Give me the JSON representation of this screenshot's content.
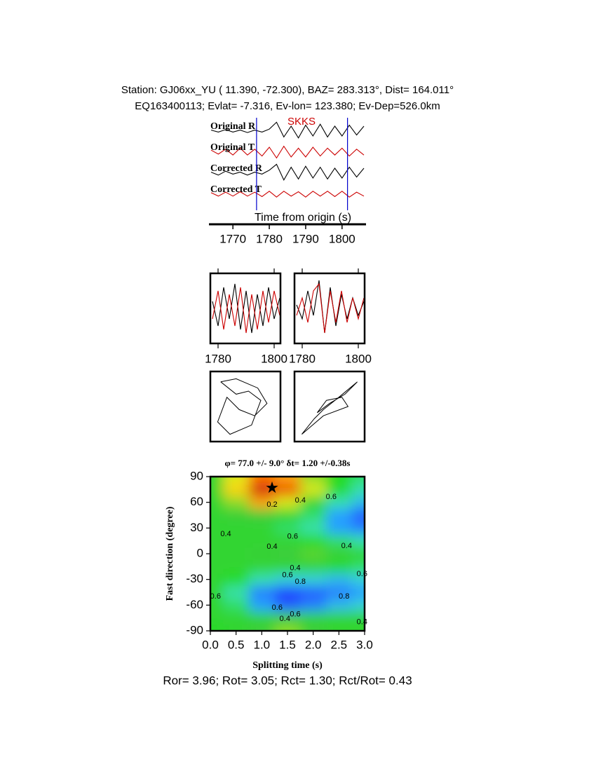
{
  "header": {
    "station": "Station: GJ06xx_YU (  11.390,  -72.300), BAZ=  283.313°, Dist=  164.011°",
    "event": "EQ163400113; Evlat=  -7.316, Ev-lon= 123.380; Ev-Dep=526.0km"
  },
  "chart_data": [
    {
      "type": "line",
      "annotation": "SKKS",
      "xlabel": "Time from origin (s)",
      "xlim": [
        1763.8,
        1806.2
      ],
      "xticks": [
        1770,
        1780,
        1790,
        1800
      ],
      "markers": [
        1776.5,
        1801.5
      ],
      "marker_color": "#0000cc",
      "x": [
        1764,
        1766,
        1768,
        1770,
        1772,
        1774,
        1776,
        1778,
        1780,
        1782,
        1784,
        1786,
        1788,
        1790,
        1792,
        1794,
        1796,
        1798,
        1800,
        1802,
        1804,
        1806
      ],
      "series": [
        {
          "name": "Original R",
          "color": "#000000",
          "values": [
            0.1,
            -0.1,
            0.15,
            -0.1,
            0.1,
            -0.15,
            0.1,
            -0.1,
            0.2,
            0.9,
            -0.6,
            0.5,
            -0.7,
            0.6,
            -0.5,
            0.7,
            -0.6,
            0.5,
            -0.5,
            0.6,
            -0.4,
            0.5
          ]
        },
        {
          "name": "Original T",
          "color": "#cc0000",
          "values": [
            0.2,
            -0.2,
            0.3,
            -0.3,
            0.4,
            -0.3,
            0.3,
            -0.4,
            0.5,
            -0.6,
            0.6,
            -0.5,
            0.4,
            -0.5,
            0.5,
            -0.4,
            0.4,
            -0.3,
            0.4,
            -0.4,
            0.3,
            -0.3
          ]
        },
        {
          "name": "Corrected R",
          "color": "#000000",
          "values": [
            0.1,
            -0.2,
            0.2,
            -0.1,
            0.1,
            -0.2,
            0.1,
            -0.1,
            0.3,
            0.9,
            -0.7,
            0.6,
            -0.6,
            0.7,
            -0.5,
            0.6,
            -0.6,
            0.5,
            -0.5,
            0.6,
            -0.4,
            0.5
          ]
        },
        {
          "name": "Corrected T",
          "color": "#cc0000",
          "values": [
            0.15,
            -0.2,
            0.2,
            -0.2,
            0.25,
            -0.2,
            0.2,
            -0.25,
            0.3,
            -0.3,
            0.3,
            -0.2,
            0.25,
            -0.3,
            0.3,
            -0.2,
            0.3,
            -0.25,
            0.3,
            -0.3,
            0.2,
            -0.2
          ]
        }
      ]
    },
    {
      "type": "line",
      "xlim": [
        1777.25,
        1802.25
      ],
      "xticks": [
        1780,
        1800
      ],
      "x": [
        1778,
        1780,
        1782,
        1784,
        1786,
        1788,
        1790,
        1792,
        1794,
        1796,
        1798,
        1800,
        1802
      ],
      "series": [
        {
          "color": "#000000",
          "values": [
            0.2,
            -0.5,
            0.6,
            -0.3,
            0.7,
            -0.6,
            0.5,
            -0.7,
            0.4,
            -0.5,
            0.6,
            -0.3,
            0.3
          ]
        },
        {
          "color": "#cc0000",
          "values": [
            -0.3,
            0.5,
            -0.6,
            0.4,
            -0.5,
            0.6,
            -0.7,
            0.4,
            -0.6,
            0.5,
            -0.4,
            0.5,
            -0.2
          ]
        }
      ]
    },
    {
      "type": "line",
      "xlim": [
        1777.25,
        1802.25
      ],
      "xticks": [
        1780,
        1800
      ],
      "x": [
        1778,
        1780,
        1782,
        1784,
        1786,
        1788,
        1790,
        1792,
        1794,
        1796,
        1798,
        1800,
        1802
      ],
      "series": [
        {
          "color": "#000000",
          "values": [
            0.1,
            -0.3,
            0.5,
            -0.2,
            0.8,
            -0.7,
            0.6,
            -0.5,
            0.4,
            -0.3,
            0.3,
            -0.2,
            0.2
          ]
        },
        {
          "color": "#cc0000",
          "values": [
            -0.2,
            0.3,
            -0.4,
            0.5,
            0.7,
            -0.7,
            0.5,
            -0.4,
            0.5,
            -0.4,
            0.3,
            -0.3,
            0.3
          ]
        }
      ]
    },
    {
      "type": "motion",
      "xlim": [
        -1,
        1
      ],
      "ylim": [
        -1,
        1
      ],
      "x": [
        -0.8,
        -0.3,
        0.4,
        0.7,
        0.3,
        -0.2,
        -0.6,
        -0.9,
        -0.5,
        0.2,
        0.5,
        0.1,
        -0.3,
        -0.8
      ],
      "values": [
        0.8,
        0.9,
        0.6,
        0.1,
        -0.3,
        -0.1,
        0.3,
        -0.5,
        -0.9,
        -0.6,
        0.2,
        0.5,
        0.4,
        0.8
      ]
    },
    {
      "type": "motion",
      "xlim": [
        -1,
        1
      ],
      "ylim": [
        -1,
        1
      ],
      "x": [
        -0.9,
        -0.5,
        -0.2,
        0.3,
        0.9,
        0.5,
        0.0,
        -0.4,
        -0.1,
        0.4,
        0.6,
        -0.2,
        -0.9
      ],
      "values": [
        -0.9,
        -0.4,
        -0.1,
        0.3,
        0.8,
        0.4,
        0.1,
        -0.2,
        0.2,
        0.3,
        0.0,
        -0.3,
        -0.9
      ]
    },
    {
      "type": "contour",
      "title": "φ= 77.0 +/- 9.0° δt= 1.20 +/-0.38s",
      "xlabel": "Splitting time (s)",
      "ylabel": "Fast direction (degree)",
      "xlim": [
        0,
        3
      ],
      "ylim": [
        -90,
        90
      ],
      "xticks": [
        {
          "value": 0,
          "label": "0.0"
        },
        0.5,
        {
          "value": 1,
          "label": "1.0"
        },
        1.5,
        {
          "value": 2,
          "label": "2.0"
        },
        2.5,
        {
          "value": 3,
          "label": "3.0"
        }
      ],
      "yticks": [
        -90,
        -60,
        -30,
        0,
        30,
        60,
        90
      ],
      "x": [
        0,
        0.5,
        1,
        1.5,
        2,
        2.5,
        3
      ],
      "y": [
        90,
        75,
        60,
        45,
        30,
        15,
        0,
        -15,
        -30,
        -45,
        -60,
        -75,
        -90
      ],
      "z": [
        [
          0.45,
          0.3,
          0.15,
          0.2,
          0.35,
          0.5,
          0.55
        ],
        [
          0.45,
          0.25,
          0.02,
          0.1,
          0.3,
          0.5,
          0.6
        ],
        [
          0.45,
          0.35,
          0.2,
          0.3,
          0.45,
          0.6,
          0.7
        ],
        [
          0.45,
          0.42,
          0.4,
          0.45,
          0.55,
          0.75,
          0.85
        ],
        [
          0.45,
          0.45,
          0.45,
          0.55,
          0.6,
          0.75,
          0.8
        ],
        [
          0.45,
          0.45,
          0.45,
          0.45,
          0.5,
          0.55,
          0.6
        ],
        [
          0.45,
          0.45,
          0.42,
          0.4,
          0.38,
          0.42,
          0.45
        ],
        [
          0.45,
          0.45,
          0.45,
          0.45,
          0.45,
          0.5,
          0.55
        ],
        [
          0.45,
          0.5,
          0.6,
          0.65,
          0.65,
          0.7,
          0.65
        ],
        [
          0.45,
          0.6,
          0.8,
          0.9,
          0.85,
          0.8,
          0.75
        ],
        [
          0.45,
          0.55,
          0.75,
          0.85,
          0.8,
          0.7,
          0.65
        ],
        [
          0.45,
          0.45,
          0.45,
          0.4,
          0.45,
          0.45,
          0.45
        ],
        [
          0.5,
          0.45,
          0.4,
          0.35,
          0.4,
          0.45,
          0.45
        ]
      ],
      "contour_labels": [
        {
          "x": 1.2,
          "y": 57,
          "level": 0.2
        },
        {
          "x": 1.75,
          "y": 62,
          "level": 0.4
        },
        {
          "x": 2.35,
          "y": 66,
          "level": 0.6
        },
        {
          "x": 0.3,
          "y": 23,
          "level": 0.4
        },
        {
          "x": 1.6,
          "y": 20,
          "level": 0.6
        },
        {
          "x": 1.2,
          "y": 8,
          "level": 0.4
        },
        {
          "x": 2.65,
          "y": 9,
          "level": 0.4
        },
        {
          "x": 1.65,
          "y": -17,
          "level": 0.4
        },
        {
          "x": 1.5,
          "y": -25,
          "level": 0.6
        },
        {
          "x": 1.75,
          "y": -33,
          "level": 0.8
        },
        {
          "x": 2.95,
          "y": -24,
          "level": 0.6
        },
        {
          "x": 2.6,
          "y": -50,
          "level": 0.8
        },
        {
          "x": 1.3,
          "y": -63,
          "level": 0.6
        },
        {
          "x": 1.65,
          "y": -71,
          "level": 0.6
        },
        {
          "x": 1.45,
          "y": -76,
          "level": 0.4
        },
        {
          "x": 2.95,
          "y": -80,
          "level": 0.4
        },
        {
          "x": 0.1,
          "y": -50,
          "level": 0.6
        }
      ],
      "marker": {
        "x": 1.2,
        "y": 77
      }
    }
  ],
  "footer": "Ror= 3.96; Rot= 3.05; Rct= 1.30; Rct/Rot= 0.43"
}
